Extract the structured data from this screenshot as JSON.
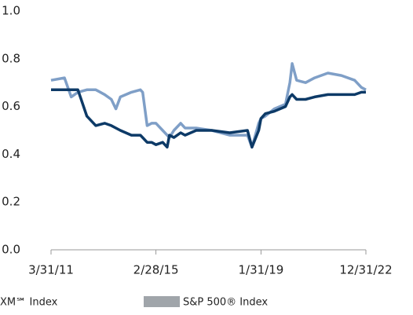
{
  "chart_data": {
    "type": "line",
    "x": [
      "3/31/11",
      "9/30/11",
      "12/31/11",
      "3/31/12",
      "7/31/12",
      "11/30/12",
      "3/31/13",
      "6/30/13",
      "8/31/13",
      "10/31/13",
      "3/31/14",
      "7/31/14",
      "8/31/14",
      "10/31/14",
      "12/31/14",
      "2/28/15",
      "5/31/15",
      "7/31/15",
      "8/31/15",
      "10/31/15",
      "1/31/16",
      "3/31/16",
      "8/31/16",
      "3/31/17",
      "11/30/17",
      "7/31/18",
      "9/30/18",
      "12/31/18",
      "1/31/19",
      "3/31/19",
      "7/31/19",
      "12/31/19",
      "2/29/20",
      "3/31/20",
      "5/31/20",
      "9/30/20",
      "1/31/21",
      "7/31/21",
      "1/31/22",
      "7/31/22",
      "10/31/22",
      "12/31/22"
    ],
    "series": [
      {
        "name": "XM℠ Index",
        "color": "#0d3a67",
        "legend_color": "#0d3a67",
        "values": [
          0.67,
          0.67,
          0.67,
          0.67,
          0.56,
          0.52,
          0.53,
          0.52,
          0.51,
          0.5,
          0.48,
          0.48,
          0.47,
          0.45,
          0.45,
          0.44,
          0.45,
          0.43,
          0.48,
          0.47,
          0.49,
          0.48,
          0.5,
          0.5,
          0.49,
          0.5,
          0.43,
          0.5,
          0.55,
          0.57,
          0.58,
          0.6,
          0.64,
          0.65,
          0.63,
          0.63,
          0.64,
          0.65,
          0.65,
          0.65,
          0.66,
          0.66
        ]
      },
      {
        "name": "S&P 500® Index",
        "color": "#7f9fc7",
        "legend_color": "#a0a5aa",
        "values": [
          0.71,
          0.72,
          0.64,
          0.66,
          0.67,
          0.67,
          0.65,
          0.63,
          0.59,
          0.64,
          0.66,
          0.67,
          0.66,
          0.52,
          0.53,
          0.53,
          0.5,
          0.48,
          0.47,
          0.5,
          0.53,
          0.51,
          0.51,
          0.5,
          0.48,
          0.48,
          0.43,
          0.53,
          0.55,
          0.56,
          0.59,
          0.61,
          0.7,
          0.78,
          0.71,
          0.7,
          0.72,
          0.74,
          0.73,
          0.71,
          0.68,
          0.67
        ]
      }
    ],
    "xticks": [
      "3/31/11",
      "2/28/15",
      "1/31/19",
      "12/31/22"
    ],
    "ylim": [
      0,
      1
    ],
    "yticks": [
      {
        "value": 0,
        "label": "0.0"
      },
      {
        "value": 0.2,
        "label": "0.2"
      },
      {
        "value": 0.4,
        "label": "0.4"
      },
      {
        "value": 0.6,
        "label": "0.6"
      },
      {
        "value": 0.8,
        "label": "0.8"
      },
      {
        "value": 1,
        "label": "1.0"
      }
    ],
    "grid": false
  }
}
